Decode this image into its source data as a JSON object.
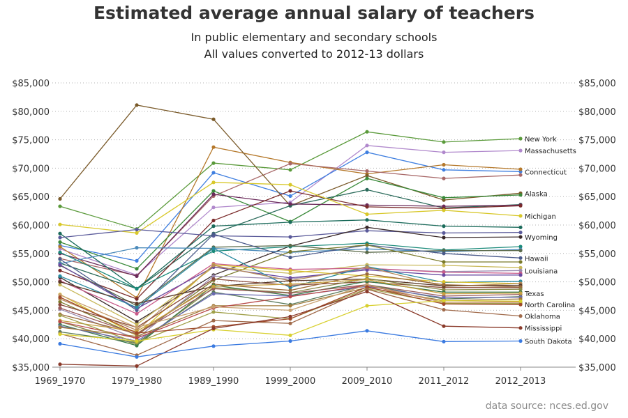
{
  "chart_data": {
    "type": "line",
    "title": "Estimated average annual salary of teachers",
    "subtitle": [
      "In public elementary and secondary schools",
      "All values converted to 2012-13 dollars"
    ],
    "source": "data source: nces.ed.gov",
    "xlabel": "",
    "ylabel": "",
    "categories": [
      "1969_1970",
      "1979_1980",
      "1989_1990",
      "1999_2000",
      "2009_2010",
      "2011_2012",
      "2012_2013"
    ],
    "ylim": [
      35000,
      85000
    ],
    "yticks": [
      35000,
      40000,
      45000,
      50000,
      55000,
      60000,
      65000,
      70000,
      75000,
      80000,
      85000
    ],
    "ytick_labels": [
      "$35,000",
      "$40,000",
      "$45,000",
      "$50,000",
      "$55,000",
      "$60,000",
      "$65,000",
      "$70,000",
      "$75,000",
      "$80,000",
      "$85,000"
    ],
    "grid": "horizontal dotted",
    "legend": "labels at right end of lines",
    "series": [
      {
        "name": "New York",
        "color": "#5a9a3a",
        "values": [
          63300,
          59300,
          70900,
          69700,
          76400,
          74600,
          75200
        ]
      },
      {
        "name": "Massachusetts",
        "color": "#b088cc",
        "values": [
          55800,
          51200,
          63100,
          64000,
          74000,
          72800,
          73100
        ]
      },
      {
        "name": "Connecticut",
        "color": "#3f7fe0",
        "values": [
          56400,
          53700,
          69200,
          65100,
          72800,
          69700,
          69400
        ]
      },
      {
        "name": "",
        "color": "#b5782a",
        "values": [
          56200,
          47200,
          73700,
          71000,
          69000,
          70600,
          69800
        ]
      },
      {
        "name": "",
        "color": "#a86868",
        "values": [
          54100,
          51100,
          65100,
          70800,
          69500,
          68200,
          68800
        ]
      },
      {
        "name": "Alaska",
        "color": "#7a5a2a",
        "values": [
          64600,
          81100,
          78600,
          63400,
          68700,
          64400,
          65600
        ]
      },
      {
        "name": "",
        "color": "#3a8a3a",
        "values": [
          57000,
          52300,
          66000,
          60600,
          68200,
          64800,
          65300
        ]
      },
      {
        "name": "",
        "color": "#2a6a5a",
        "values": [
          53300,
          48800,
          58500,
          63400,
          66200,
          63000,
          63600
        ]
      },
      {
        "name": "",
        "color": "#6a2a5a",
        "values": [
          55000,
          51000,
          65400,
          63700,
          63500,
          63300,
          63500
        ]
      },
      {
        "name": "",
        "color": "#7a2a2a",
        "values": [
          52000,
          47000,
          60800,
          66000,
          63200,
          62900,
          63400
        ]
      },
      {
        "name": "Michigan",
        "color": "#d8c82a",
        "values": [
          60100,
          58600,
          67500,
          67100,
          61900,
          62600,
          61600
        ]
      },
      {
        "name": "",
        "color": "#1a6a5a",
        "values": [
          58500,
          48800,
          59800,
          60500,
          60900,
          59800,
          59600
        ]
      },
      {
        "name": "",
        "color": "#5a5a9a",
        "values": [
          57800,
          59200,
          58100,
          57900,
          59000,
          58600,
          58700
        ]
      },
      {
        "name": "Wyoming",
        "color": "#3a2a2a",
        "values": [
          50800,
          43000,
          51200,
          56300,
          59600,
          57800,
          57900
        ]
      },
      {
        "name": "",
        "color": "#1a8a7a",
        "values": [
          55200,
          48800,
          55400,
          56200,
          56800,
          55600,
          56200
        ]
      },
      {
        "name": "",
        "color": "#4a8aba",
        "values": [
          53200,
          56000,
          55900,
          55200,
          55800,
          55300,
          55700
        ]
      },
      {
        "name": "",
        "color": "#5a6a4a",
        "values": [
          52900,
          45800,
          56100,
          56400,
          55200,
          55500,
          55500
        ]
      },
      {
        "name": "Hawaii",
        "color": "#4a5a8a",
        "values": [
          54000,
          45000,
          58400,
          54300,
          56500,
          55000,
          54200
        ]
      },
      {
        "name": "",
        "color": "#7a7a2a",
        "values": [
          46500,
          40600,
          50300,
          55300,
          56500,
          53500,
          53500
        ]
      },
      {
        "name": "",
        "color": "#c8b85a",
        "values": [
          49500,
          42500,
          52600,
          51500,
          53000,
          52900,
          52500
        ]
      },
      {
        "name": "Louisiana",
        "color": "#9a8ab0",
        "values": [
          45200,
          40000,
          51000,
          50500,
          52300,
          51800,
          52000
        ]
      },
      {
        "name": "",
        "color": "#c85a8a",
        "values": [
          50200,
          44400,
          53200,
          52200,
          52400,
          51700,
          51500
        ]
      },
      {
        "name": "",
        "color": "#6a4aa0",
        "values": [
          53000,
          45300,
          52600,
          50700,
          52100,
          51200,
          51200
        ]
      },
      {
        "name": "",
        "color": "#2a8aa0",
        "values": [
          51000,
          45500,
          55900,
          49000,
          52700,
          49900,
          50100
        ]
      },
      {
        "name": "",
        "color": "#d8c02a",
        "values": [
          47800,
          40600,
          53000,
          52000,
          51000,
          50000,
          49700
        ]
      },
      {
        "name": "",
        "color": "#b58a5a",
        "values": [
          47000,
          41500,
          52900,
          50200,
          52600,
          49200,
          49700
        ]
      },
      {
        "name": "",
        "color": "#8a4a3a",
        "values": [
          46000,
          42000,
          50500,
          49400,
          50000,
          49000,
          49000
        ]
      },
      {
        "name": "",
        "color": "#5a3a2a",
        "values": [
          50000,
          46200,
          49200,
          50200,
          50500,
          49300,
          49400
        ]
      },
      {
        "name": "",
        "color": "#9a6a3a",
        "values": [
          44300,
          40900,
          49600,
          48500,
          51400,
          49500,
          49100
        ]
      },
      {
        "name": "",
        "color": "#8a8a4a",
        "values": [
          43000,
          39000,
          49000,
          48100,
          50600,
          48600,
          48700
        ]
      },
      {
        "name": "",
        "color": "#3a7a4a",
        "values": [
          42500,
          38800,
          49400,
          47600,
          50100,
          48200,
          48200
        ]
      },
      {
        "name": "",
        "color": "#9a5a5a",
        "values": [
          45400,
          40800,
          48800,
          48000,
          49500,
          47500,
          47800
        ]
      },
      {
        "name": "Texas",
        "color": "#c8a040",
        "values": [
          43200,
          41300,
          49200,
          49600,
          50400,
          47900,
          48000
        ]
      },
      {
        "name": "",
        "color": "#5a7a5a",
        "values": [
          41200,
          39300,
          48200,
          46000,
          49500,
          47000,
          47400
        ]
      },
      {
        "name": "",
        "color": "#6a6ab0",
        "values": [
          42200,
          39600,
          47900,
          47500,
          49200,
          47200,
          47300
        ]
      },
      {
        "name": "",
        "color": "#a07a3a",
        "values": [
          42000,
          40400,
          45800,
          45800,
          49000,
          46700,
          47000
        ]
      },
      {
        "name": "",
        "color": "#b84a4a",
        "values": [
          43000,
          40100,
          45400,
          47400,
          49400,
          46400,
          46500
        ]
      },
      {
        "name": "",
        "color": "#c8a070",
        "values": [
          47700,
          42000,
          45600,
          45000,
          49500,
          46400,
          46400
        ]
      },
      {
        "name": "",
        "color": "#a0a04a",
        "values": [
          44100,
          39300,
          44700,
          43500,
          48800,
          46200,
          46200
        ]
      },
      {
        "name": "North Carolina",
        "color": "#a04a2a",
        "values": [
          47300,
          41000,
          42100,
          43500,
          49100,
          46100,
          46000
        ]
      },
      {
        "name": "Oklahoma",
        "color": "#a06a4a",
        "values": [
          40900,
          37100,
          43200,
          42700,
          48700,
          45100,
          44000
        ]
      },
      {
        "name": "",
        "color": "#d8d030",
        "values": [
          40800,
          39600,
          41600,
          40600,
          45800,
          46700,
          46600
        ]
      },
      {
        "name": "Mississippi",
        "color": "#8a3a2a",
        "values": [
          35500,
          35200,
          41800,
          43900,
          48300,
          42200,
          41900
        ]
      },
      {
        "name": "South Dakota",
        "color": "#3a7ae0",
        "values": [
          39100,
          36800,
          38700,
          39600,
          41400,
          39500,
          39600
        ]
      }
    ]
  }
}
